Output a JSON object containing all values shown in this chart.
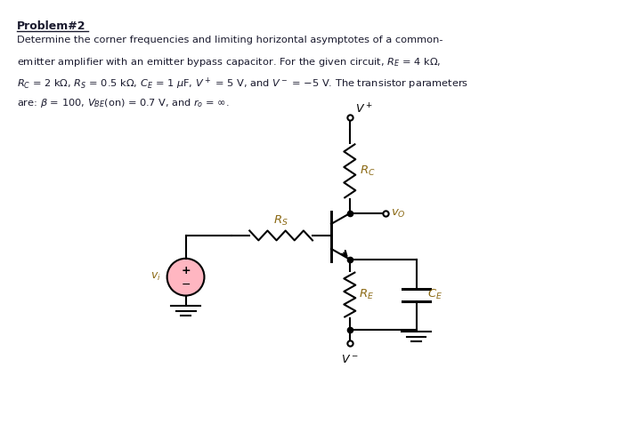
{
  "title": "Problem#2",
  "bg_color": "#ffffff",
  "text_color": "#1a1a2e",
  "circuit_color": "#000000",
  "label_color": "#8B6914",
  "source_fill": "#ffb6c1",
  "lw": 1.5
}
